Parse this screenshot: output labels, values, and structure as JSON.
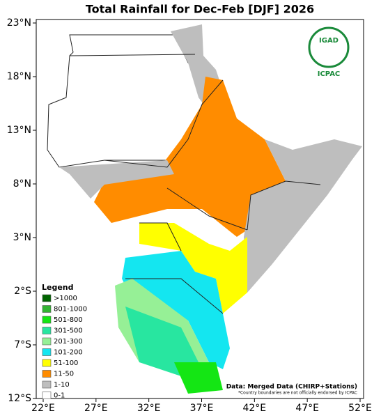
{
  "title": "Total Rainfall for Dec-Feb [DJF] 2026",
  "logo": {
    "name": "IGAD",
    "org": "ICPAC"
  },
  "axes": {
    "lat_ticks": [
      "23°N",
      "18°N",
      "13°N",
      "8°N",
      "3°N",
      "2°S",
      "7°S",
      "12°S"
    ],
    "lon_ticks": [
      "22°E",
      "27°E",
      "32°E",
      "37°E",
      "42°E",
      "47°E",
      "52°E"
    ]
  },
  "legend": {
    "title": "Legend",
    "items": [
      {
        "label": ">1000",
        "color": "#006400"
      },
      {
        "label": "801-1000",
        "color": "#32b432"
      },
      {
        "label": "501-800",
        "color": "#14e614"
      },
      {
        "label": "301-500",
        "color": "#28e6a0"
      },
      {
        "label": "201-300",
        "color": "#96f096"
      },
      {
        "label": "101-200",
        "color": "#14e6f0"
      },
      {
        "label": "51-100",
        "color": "#ffff00"
      },
      {
        "label": "11-50",
        "color": "#ff8c00"
      },
      {
        "label": "1-10",
        "color": "#bebebe"
      },
      {
        "label": "0-1",
        "color": "#ffffff"
      }
    ]
  },
  "source": "Data: Merged Data (CHIRP+Stations)",
  "note": "*Country boundaries are not officially endorsed by ICPAC"
}
